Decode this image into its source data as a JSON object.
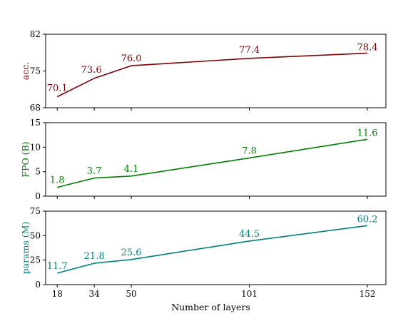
{
  "chart_data": [
    {
      "type": "line",
      "ylabel": "acc.",
      "color": "#7f0000",
      "x": [
        18,
        34,
        50,
        101,
        152
      ],
      "values": [
        70.1,
        73.6,
        76.0,
        77.4,
        78.4
      ],
      "data_labels": [
        "70.1",
        "73.6",
        "76.0",
        "77.4",
        "78.4"
      ],
      "ylim": [
        68,
        82
      ],
      "yticks": [
        68,
        75,
        82
      ],
      "xlim": [
        13,
        160
      ],
      "grid": false
    },
    {
      "type": "line",
      "ylabel": "FPO (B)",
      "color": "#008000",
      "x": [
        18,
        34,
        50,
        101,
        152
      ],
      "values": [
        1.8,
        3.7,
        4.1,
        7.8,
        11.6
      ],
      "data_labels": [
        "1.8",
        "3.7",
        "4.1",
        "7.8",
        "11.6"
      ],
      "ylim": [
        0,
        15
      ],
      "yticks": [
        0,
        5,
        10,
        15
      ],
      "xlim": [
        13,
        160
      ],
      "grid": false
    },
    {
      "type": "line",
      "ylabel": "params (M)",
      "color": "#008080",
      "x": [
        18,
        34,
        50,
        101,
        152
      ],
      "values": [
        11.7,
        21.8,
        25.6,
        44.5,
        60.2
      ],
      "data_labels": [
        "11.7",
        "21.8",
        "25.6",
        "44.5",
        "60.2"
      ],
      "ylim": [
        0,
        75
      ],
      "yticks": [
        0,
        25,
        50,
        75
      ],
      "xlim": [
        13,
        160
      ],
      "grid": false,
      "xlabel": "Number of layers",
      "xticks": [
        18,
        34,
        50,
        101,
        152
      ]
    }
  ]
}
